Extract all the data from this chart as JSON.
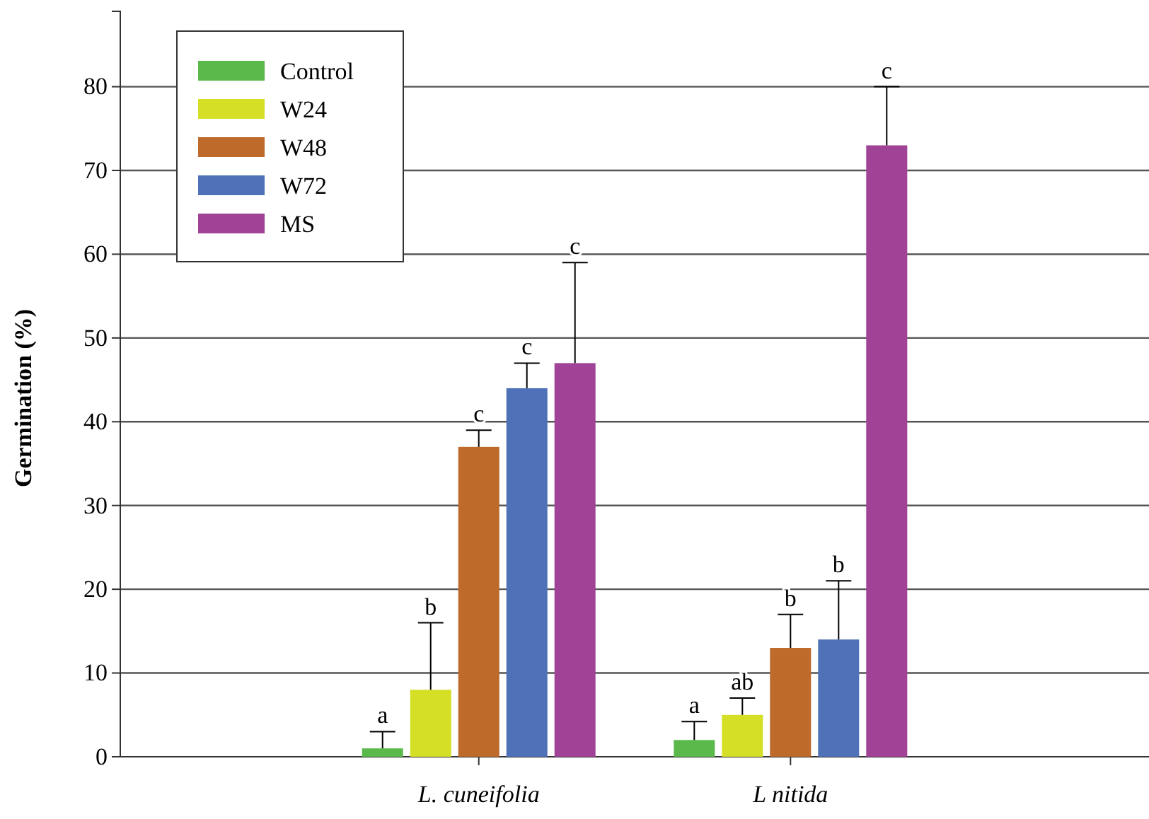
{
  "chart_data": {
    "type": "bar",
    "ylabel": "Germination (%)",
    "categories": [
      "L. cuneifolia",
      "L nitida"
    ],
    "series": [
      {
        "name": "Control",
        "color": "#5ab94a",
        "values": [
          1,
          2
        ],
        "errors": [
          [
            1,
            3
          ],
          [
            2,
            4.2
          ]
        ]
      },
      {
        "name": "W24",
        "color": "#d4df26",
        "values": [
          8,
          5
        ],
        "errors": [
          [
            8,
            16
          ],
          [
            5,
            7
          ]
        ]
      },
      {
        "name": "W48",
        "color": "#bd6a2b",
        "values": [
          37,
          13
        ],
        "errors": [
          [
            37,
            39
          ],
          [
            13,
            17
          ]
        ]
      },
      {
        "name": "W72",
        "color": "#4f71b8",
        "values": [
          44,
          14
        ],
        "errors": [
          [
            44,
            47
          ],
          [
            14,
            21
          ]
        ]
      },
      {
        "name": "MS",
        "color": "#a04397",
        "values": [
          47,
          73
        ],
        "errors": [
          [
            47,
            59
          ],
          [
            73,
            80
          ]
        ]
      }
    ],
    "annotations": [
      "a",
      "b",
      "c",
      "c",
      "c",
      "a",
      "ab",
      "b",
      "b",
      "c"
    ],
    "ylim": [
      0,
      89
    ],
    "yticks": [
      0,
      10,
      20,
      30,
      40,
      50,
      60,
      70,
      80
    ],
    "grid": "y",
    "legend": "top left"
  }
}
